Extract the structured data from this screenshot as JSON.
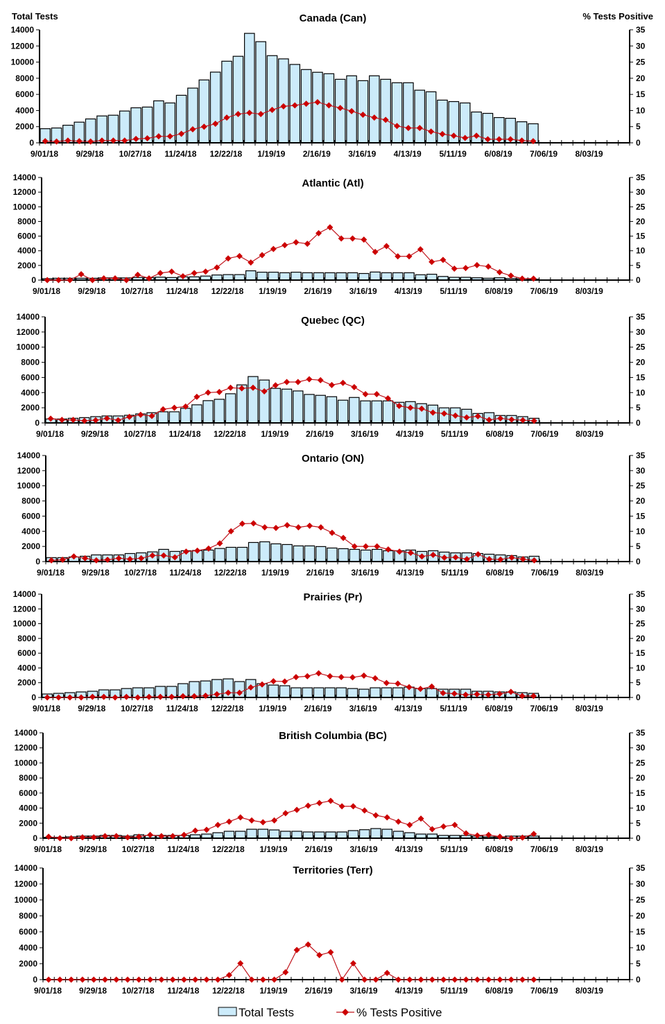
{
  "axes": {
    "left_title": "Total Tests",
    "right_title": "% Tests Positive",
    "ylim": [
      0,
      14000
    ],
    "y_ticks": [
      "0",
      "2000",
      "4000",
      "6000",
      "8000",
      "10000",
      "12000",
      "14000"
    ],
    "y2lim": [
      0,
      35
    ],
    "y2_ticks": [
      "0",
      "5",
      "10",
      "15",
      "20",
      "25",
      "30",
      "35"
    ],
    "x_tick_labels": [
      "9/01/18",
      "9/29/18",
      "10/27/18",
      "11/24/18",
      "12/22/18",
      "1/19/19",
      "2/16/19",
      "3/16/19",
      "4/13/19",
      "5/11/19",
      "6/08/19",
      "7/06/19",
      "8/03/19"
    ],
    "weeks_on_axis": 52,
    "grid": false
  },
  "legend": {
    "placement": "bottom",
    "items": [
      {
        "label": "Total Tests",
        "type": "bar"
      },
      {
        "label": "% Tests Positive",
        "type": "line"
      }
    ]
  },
  "colors": {
    "bar_fill": "#CCEBFA",
    "bar_stroke": "#000000",
    "line": "#C0141C",
    "marker": "#CC0000"
  },
  "chart_data": [
    {
      "type": "bar",
      "title": "Canada (Can)",
      "series": [
        {
          "name": "Total Tests",
          "type": "bar",
          "axis": "left",
          "values": [
            1750,
            1840,
            2180,
            2560,
            2960,
            3330,
            3420,
            3940,
            4340,
            4430,
            5200,
            4940,
            5890,
            6780,
            7790,
            8760,
            10110,
            10720,
            13560,
            12530,
            10800,
            10400,
            9710,
            9080,
            8740,
            8560,
            7870,
            8300,
            7700,
            8300,
            7870,
            7440,
            7440,
            6520,
            6320,
            5290,
            5110,
            4940,
            3820,
            3650,
            3130,
            3040,
            2610,
            2360
          ]
        },
        {
          "name": "% Tests Positive",
          "type": "line",
          "axis": "right",
          "values": [
            0.5,
            0.4,
            0.7,
            0.5,
            0.4,
            0.7,
            0.7,
            0.7,
            1.2,
            1.4,
            2.0,
            2.0,
            2.8,
            4.2,
            5.0,
            5.9,
            7.8,
            8.9,
            9.3,
            8.9,
            10.2,
            11.3,
            11.6,
            12.1,
            12.6,
            11.6,
            10.8,
            9.8,
            8.7,
            7.8,
            7.1,
            5.2,
            4.6,
            4.6,
            3.5,
            2.7,
            2.2,
            1.5,
            2.2,
            1.1,
            1.1,
            1.1,
            0.7,
            0.5
          ]
        }
      ]
    },
    {
      "type": "bar",
      "title": "Atlantic (Atl)",
      "series": [
        {
          "name": "Total Tests",
          "type": "bar",
          "axis": "left",
          "values": [
            200,
            250,
            250,
            250,
            250,
            300,
            300,
            300,
            350,
            350,
            400,
            350,
            450,
            450,
            550,
            700,
            750,
            750,
            1270,
            1080,
            1080,
            1000,
            1080,
            1000,
            1000,
            1000,
            1000,
            1000,
            900,
            1100,
            1000,
            1000,
            1000,
            730,
            800,
            500,
            380,
            380,
            320,
            250,
            320,
            220,
            190,
            130
          ]
        },
        {
          "name": "% Tests Positive",
          "type": "line",
          "axis": "right",
          "values": [
            0,
            0,
            0,
            2.0,
            0,
            0.6,
            0.6,
            0,
            1.8,
            0.6,
            2.4,
            2.9,
            1.3,
            2.4,
            2.9,
            4.3,
            7.4,
            8.2,
            6.0,
            8.5,
            10.6,
            11.9,
            12.9,
            12.4,
            16.0,
            18.0,
            14.2,
            14.2,
            13.8,
            9.6,
            11.6,
            8.1,
            8.1,
            10.5,
            6.2,
            6.9,
            3.9,
            4.1,
            5.1,
            4.6,
            2.7,
            1.5,
            0.5,
            0.5
          ]
        }
      ]
    },
    {
      "type": "bar",
      "title": "Quebec (QC)",
      "series": [
        {
          "name": "Total Tests",
          "type": "bar",
          "axis": "left",
          "values": [
            520,
            520,
            610,
            700,
            830,
            920,
            920,
            1010,
            1190,
            1350,
            1470,
            1470,
            1930,
            2390,
            2940,
            3120,
            3850,
            5020,
            6120,
            5660,
            4560,
            4460,
            4220,
            3760,
            3640,
            3460,
            3000,
            3360,
            2910,
            2910,
            2910,
            2720,
            2810,
            2540,
            2350,
            1990,
            1990,
            1800,
            1250,
            1350,
            980,
            980,
            830,
            610
          ]
        },
        {
          "name": "% Tests Positive",
          "type": "line",
          "axis": "right",
          "values": [
            1.4,
            1.0,
            1.0,
            0.7,
            0.9,
            1.5,
            0.9,
            2.0,
            2.7,
            2.3,
            4.5,
            5.0,
            5.4,
            8.6,
            10.0,
            10.2,
            11.6,
            11.4,
            11.6,
            10.4,
            12.4,
            13.5,
            13.5,
            14.4,
            14.1,
            12.5,
            13.2,
            11.8,
            9.5,
            9.5,
            8.1,
            5.6,
            5.0,
            4.7,
            3.4,
            3.1,
            2.4,
            1.8,
            2.2,
            1.0,
            1.5,
            1.1,
            0.9,
            0.7
          ]
        }
      ]
    },
    {
      "type": "bar",
      "title": "Ontario (ON)",
      "series": [
        {
          "name": "Total Tests",
          "type": "bar",
          "axis": "left",
          "values": [
            520,
            520,
            610,
            700,
            880,
            880,
            880,
            1060,
            1150,
            1280,
            1610,
            1340,
            1430,
            1460,
            1520,
            1730,
            1880,
            1880,
            2520,
            2610,
            2340,
            2250,
            2070,
            2070,
            1980,
            1790,
            1700,
            1610,
            1520,
            1610,
            1430,
            1430,
            1520,
            1340,
            1430,
            1250,
            1150,
            1150,
            1060,
            970,
            880,
            790,
            610,
            700
          ]
        },
        {
          "name": "% Tests Positive",
          "type": "line",
          "axis": "right",
          "values": [
            0.4,
            0.6,
            1.7,
            1.1,
            0.4,
            0.6,
            1.1,
            0.8,
            1.1,
            2.0,
            2.0,
            1.4,
            3.3,
            3.6,
            4.3,
            6.0,
            10.0,
            12.5,
            12.6,
            11.3,
            11.1,
            12.0,
            11.3,
            11.8,
            11.3,
            9.5,
            7.8,
            5.0,
            5.0,
            5.0,
            4.0,
            3.3,
            2.9,
            1.7,
            2.2,
            1.3,
            1.4,
            0.8,
            2.4,
            0.8,
            0.7,
            1.3,
            0.8,
            0.4
          ]
        }
      ]
    },
    {
      "type": "bar",
      "title": "Prairies (Pr)",
      "series": [
        {
          "name": "Total Tests",
          "type": "bar",
          "axis": "left",
          "values": [
            470,
            560,
            650,
            750,
            840,
            1030,
            1030,
            1210,
            1310,
            1310,
            1500,
            1500,
            1870,
            2150,
            2240,
            2430,
            2520,
            2150,
            2430,
            1870,
            1680,
            1590,
            1310,
            1310,
            1310,
            1310,
            1310,
            1210,
            1120,
            1310,
            1310,
            1310,
            1400,
            1210,
            1210,
            1120,
            1120,
            1120,
            840,
            840,
            750,
            750,
            650,
            560
          ]
        },
        {
          "name": "% Tests Positive",
          "type": "line",
          "axis": "right",
          "values": [
            0,
            0,
            0,
            0,
            0.2,
            0.2,
            0,
            0.2,
            0,
            0.2,
            0.2,
            0.2,
            0.4,
            0.4,
            0.6,
            1.1,
            1.6,
            1.6,
            3.4,
            4.4,
            5.5,
            5.4,
            6.9,
            7.2,
            8.2,
            7.2,
            6.9,
            6.8,
            7.4,
            6.5,
            4.9,
            4.7,
            3.5,
            2.9,
            3.7,
            1.5,
            1.3,
            0.9,
            1.1,
            0.9,
            1.2,
            1.9,
            0.5,
            0.5
          ]
        }
      ]
    },
    {
      "type": "bar",
      "title": "British Columbia (BC)",
      "series": [
        {
          "name": "Total Tests",
          "type": "bar",
          "axis": "left",
          "values": [
            120,
            120,
            180,
            280,
            280,
            370,
            370,
            280,
            460,
            370,
            370,
            370,
            370,
            460,
            550,
            730,
            920,
            920,
            1190,
            1190,
            1100,
            920,
            920,
            830,
            830,
            830,
            830,
            1010,
            1130,
            1280,
            1190,
            920,
            730,
            550,
            550,
            370,
            370,
            370,
            280,
            180,
            180,
            280,
            280,
            280
          ]
        },
        {
          "name": "% Tests Positive",
          "type": "line",
          "axis": "right",
          "values": [
            0.5,
            0,
            0,
            0.3,
            0.3,
            0.7,
            0.7,
            0.3,
            0.5,
            1.1,
            0.7,
            0.7,
            1.1,
            2.5,
            2.8,
            4.4,
            5.5,
            6.9,
            5.9,
            5.3,
            5.9,
            8.3,
            9.4,
            10.8,
            11.7,
            12.4,
            10.6,
            10.6,
            9.2,
            7.6,
            6.9,
            5.5,
            4.4,
            6.5,
            3.0,
            3.9,
            4.4,
            1.6,
            0.9,
            1.1,
            0.5,
            0,
            0.2,
            1.4
          ]
        }
      ]
    },
    {
      "type": "bar",
      "title": "Territories (Terr)",
      "series": [
        {
          "name": "Total Tests",
          "type": "bar",
          "axis": "left",
          "values": [
            0,
            0,
            0,
            0,
            0,
            0,
            0,
            0,
            0,
            0,
            0,
            0,
            0,
            0,
            0,
            0,
            0,
            0,
            0,
            0,
            0,
            0,
            0,
            0,
            0,
            0,
            0,
            0,
            0,
            0,
            0,
            0,
            0,
            0,
            0,
            0,
            0,
            0,
            0,
            0,
            0,
            0,
            0,
            0
          ]
        },
        {
          "name": "% Tests Positive",
          "type": "line",
          "axis": "right",
          "values": [
            0,
            0,
            0,
            0,
            0,
            0,
            0,
            0,
            0,
            0,
            0,
            0,
            0,
            0,
            0,
            0,
            1.4,
            5.1,
            0,
            0,
            0,
            2.3,
            9.3,
            11.0,
            7.7,
            8.6,
            0,
            5.1,
            0,
            0,
            2.1,
            0,
            0,
            0,
            0,
            0,
            0,
            0,
            0,
            0,
            0,
            0,
            0,
            0
          ]
        }
      ]
    }
  ]
}
